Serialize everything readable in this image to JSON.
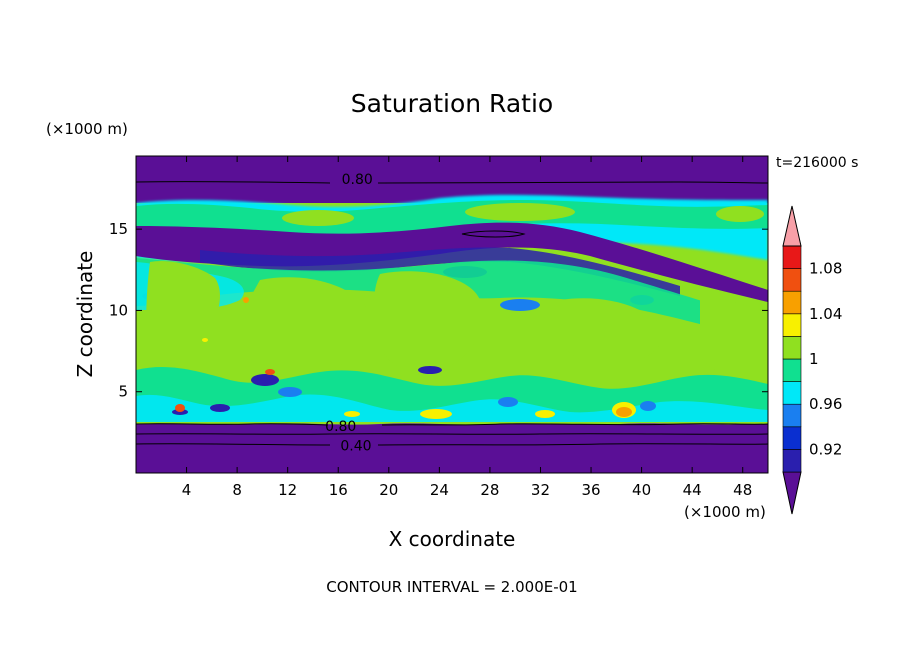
{
  "chart_data": {
    "type": "heatmap",
    "title": "Saturation Ratio",
    "xlabel": "X coordinate",
    "ylabel": "Z coordinate",
    "x_unit": "(×1000 m)",
    "y_unit": "(×1000 m)",
    "time_label": "t=216000 s",
    "footer": "CONTOUR INTERVAL = 2.000E-01",
    "x_ticks": [
      4,
      8,
      12,
      16,
      20,
      24,
      28,
      32,
      36,
      40,
      44,
      48
    ],
    "y_ticks": [
      5,
      10,
      15
    ],
    "xlim": [
      0,
      50
    ],
    "ylim": [
      0,
      19.5
    ],
    "colorbar": {
      "levels": [
        0.9,
        0.92,
        0.94,
        0.96,
        0.98,
        1.0,
        1.02,
        1.04,
        1.06,
        1.08,
        1.1
      ],
      "colors": [
        "#5a0f96",
        "#2a1fae",
        "#0a2fd0",
        "#1a7ff0",
        "#00e8f8",
        "#10e090",
        "#90e020",
        "#f8f000",
        "#f8a000",
        "#f05010",
        "#e81818",
        "#f8a0a8"
      ],
      "tick_labels": [
        "0.92",
        "0.96",
        "1",
        "1.04",
        "1.08"
      ],
      "tick_values": [
        0.92,
        0.96,
        1.0,
        1.04,
        1.08
      ]
    },
    "contour_labels": [
      {
        "text": "0.80",
        "x": 17.5,
        "z": 18.1
      },
      {
        "text": "0.80",
        "x": 16.2,
        "z": 2.9
      },
      {
        "text": "0.40",
        "x": 17.4,
        "z": 1.7
      }
    ]
  }
}
